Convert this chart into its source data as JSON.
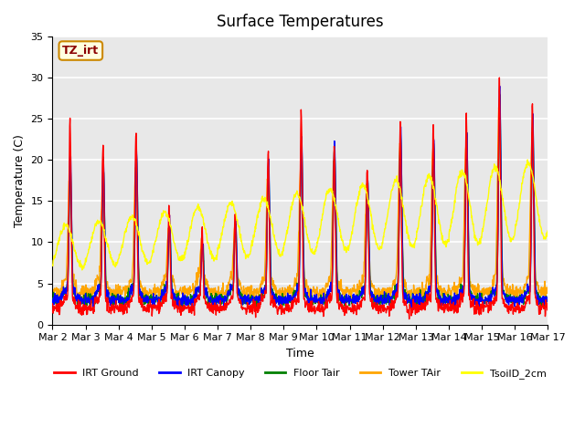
{
  "title": "Surface Temperatures",
  "xlabel": "Time",
  "ylabel": "Temperature (C)",
  "ylim": [
    0,
    35
  ],
  "plot_bg_color": "#e8e8e8",
  "legend_entries": [
    "IRT Ground",
    "IRT Canopy",
    "Floor Tair",
    "Tower TAir",
    "TsoilD_2cm"
  ],
  "line_colors": [
    "red",
    "blue",
    "green",
    "orange",
    "yellow"
  ],
  "annotation_text": "TZ_irt",
  "x_tick_labels": [
    "Mar 2",
    "Mar 3",
    "Mar 4",
    "Mar 5",
    "Mar 6",
    "Mar 7",
    "Mar 8",
    "Mar 9",
    "Mar 10",
    "Mar 11",
    "Mar 12",
    "Mar 13",
    "Mar 14",
    "Mar 15",
    "Mar 16",
    "Mar 17"
  ],
  "y_ticks": [
    0,
    5,
    10,
    15,
    20,
    25,
    30,
    35
  ],
  "title_fontsize": 12,
  "axis_label_fontsize": 9,
  "tick_fontsize": 8,
  "n_days": 15,
  "n_per_day": 96,
  "seed": 10
}
